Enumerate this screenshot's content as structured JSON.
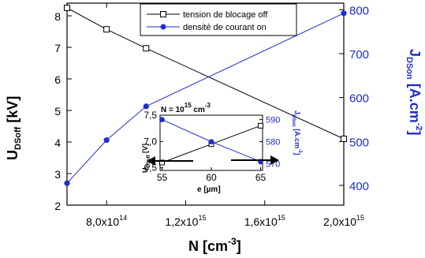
{
  "chart_data": [
    {
      "type": "line",
      "x": [
        600000000000000.0,
        800000000000000.0,
        1000000000000000.0,
        2000000000000000.0
      ],
      "x_tick_labels": [
        "8,0x10",
        "1,2x10",
        "1,6x10",
        "2,0x10"
      ],
      "x_tick_exponents": [
        "14",
        "15",
        "15",
        "15"
      ],
      "x_tick_values": [
        800000000000000.0,
        1200000000000000.0,
        1600000000000000.0,
        2000000000000000.0
      ],
      "xlim": [
        600000000000000.0,
        2000000000000000.0
      ],
      "xlabel": "N  [cm",
      "xlabel_exp": "-3",
      "xlabel_end": "]",
      "ylabel_left": "U",
      "ylabel_left_sub": "DSoff",
      "ylabel_left_end": " [kV]",
      "ylabel_right": "J",
      "ylabel_right_sub": "DSon",
      "ylabel_right_end": " [A.cm",
      "ylabel_right_exp": "-2",
      "ylabel_right_close": "]",
      "ylim_left": [
        2,
        8.4
      ],
      "ylim_right": [
        355,
        815
      ],
      "y_left_ticks": [
        "2",
        "3",
        "4",
        "5",
        "6",
        "7",
        "8"
      ],
      "y_right_ticks": [
        "400",
        "500",
        "600",
        "700",
        "800"
      ],
      "series": [
        {
          "name": "tension de blocage off",
          "axis": "left",
          "marker": "open-square",
          "color": "#000000",
          "values": [
            8.25,
            7.57,
            6.97,
            4.1
          ]
        },
        {
          "name": "densité de courant on",
          "axis": "right",
          "marker": "filled-circle",
          "color": "#1f2ccf",
          "values": [
            405,
            503,
            580,
            792
          ]
        }
      ],
      "legend_position": "top-center",
      "grid": false
    },
    {
      "type": "line",
      "inset": true,
      "title": "N = 10",
      "title_exp": "15",
      "title_end": " cm",
      "title_end_exp": "-3",
      "x": [
        55,
        60,
        65
      ],
      "xlim": [
        54.8,
        65.2
      ],
      "x_ticks": [
        "55",
        "60",
        "65"
      ],
      "xlabel": "e [µm]",
      "ylim_left": [
        6.45,
        7.5
      ],
      "ylim_right": [
        567,
        592
      ],
      "y_left_ticks": [
        "6,5",
        "7,0",
        "7,5"
      ],
      "y_right_ticks": [
        "570",
        "580",
        "590"
      ],
      "ylabel_left": "U",
      "ylabel_left_sub": "DSoff",
      "ylabel_left_end": " [V]",
      "ylabel_right": "J",
      "ylabel_right_sub": "DSon",
      "ylabel_right_end": " [A.cm",
      "ylabel_right_exp": "-2",
      "ylabel_right_close": "]",
      "series": [
        {
          "axis": "left",
          "marker": "open-square",
          "color": "#000000",
          "values": [
            6.6,
            6.95,
            7.3
          ]
        },
        {
          "axis": "right",
          "marker": "filled-circle",
          "color": "#1f2ccf",
          "values": [
            590,
            580,
            571
          ]
        }
      ],
      "grid": false
    }
  ]
}
